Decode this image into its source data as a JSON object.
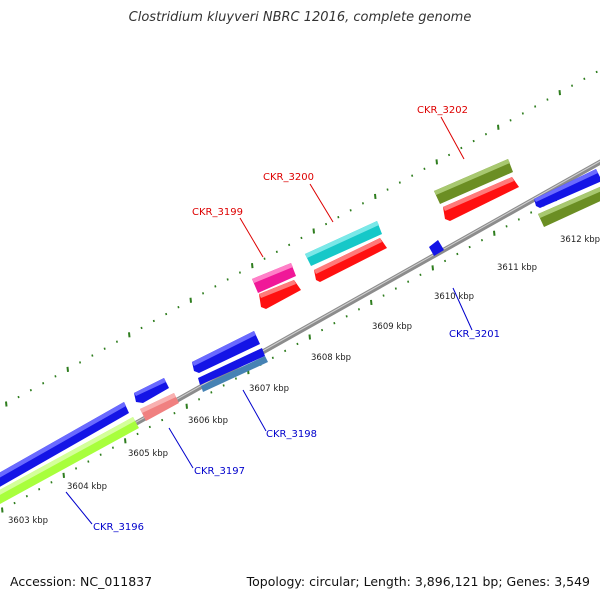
{
  "title": "Clostridium kluyveri NBRC 12016, complete genome",
  "footer": {
    "accession": "Accession: NC_011837",
    "summary": "Topology: circular; Length: 3,896,121 bp; Genes: 3,549"
  },
  "colors": {
    "backbone": "#8c8c8c",
    "tick": "#2e7d1e",
    "label_forward": "#dd0000",
    "label_reverse": "#0000cc",
    "blue": "#1414e6",
    "red": "#ff1010",
    "olive": "#6b8e23",
    "cyan": "#16c8c8",
    "magenta": "#f01898",
    "lime": "#a8ff3c",
    "salmon": "#f08080",
    "steel": "#4682b4"
  },
  "scale_labels": [
    "3603 kbp",
    "3604 kbp",
    "3605 kbp",
    "3606 kbp",
    "3607 kbp",
    "3608 kbp",
    "3609 kbp",
    "3610 kbp",
    "3611 kbp",
    "3612 kbp"
  ],
  "gene_labels": {
    "forward": [
      "CKR_3199",
      "CKR_3200",
      "CKR_3202"
    ],
    "reverse": [
      "CKR_3196",
      "CKR_3197",
      "CKR_3198",
      "CKR_3201"
    ]
  }
}
